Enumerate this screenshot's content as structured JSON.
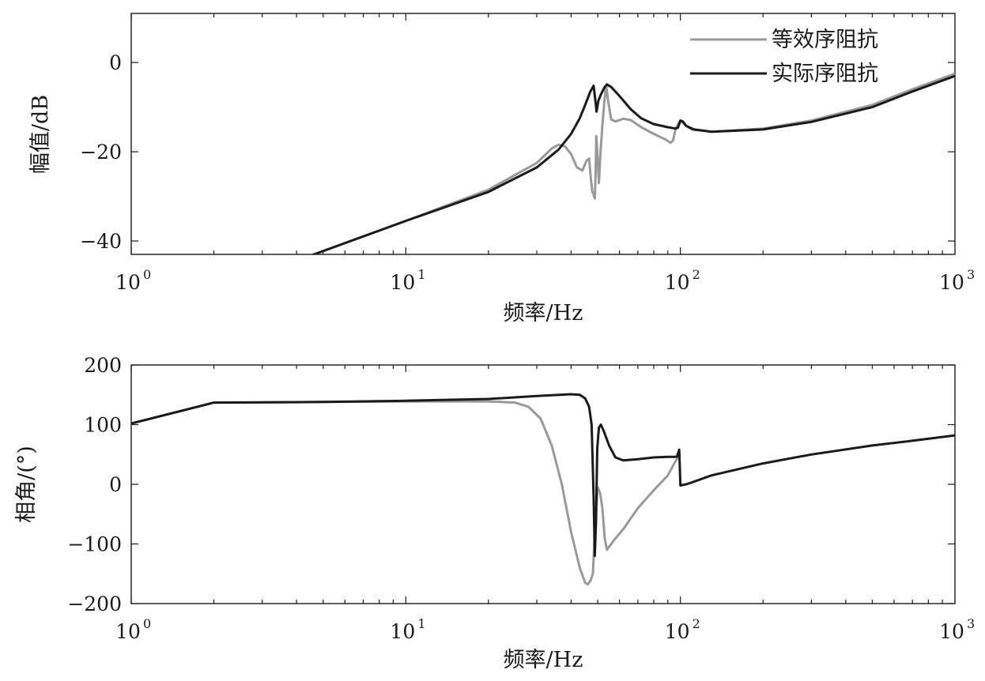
{
  "chart_data": [
    {
      "type": "line",
      "xscale": "log",
      "xlim": [
        1,
        1000
      ],
      "ylim": [
        -43,
        11
      ],
      "xlabel": "频率/Hz",
      "ylabel": "幅值/dB",
      "grid": false,
      "legend_position": "top-right",
      "xtick_labels": [
        {
          "base": "10",
          "exp": "0",
          "value": 1
        },
        {
          "base": "10",
          "exp": "1",
          "value": 10
        },
        {
          "base": "10",
          "exp": "2",
          "value": 100
        },
        {
          "base": "10",
          "exp": "3",
          "value": 1000
        }
      ],
      "yticks": [
        {
          "value": 0,
          "label": "0"
        },
        {
          "value": -20,
          "label": "−20"
        },
        {
          "value": -40,
          "label": "−40"
        }
      ],
      "series": [
        {
          "name": "等效序阻抗",
          "color": "#999999",
          "points": [
            [
              4.4,
              -43.5
            ],
            [
              10,
              -35.5
            ],
            [
              20,
              -28.5
            ],
            [
              30,
              -22.5
            ],
            [
              34,
              -19.3
            ],
            [
              36,
              -18.4
            ],
            [
              38,
              -18.8
            ],
            [
              40,
              -20.5
            ],
            [
              42,
              -23.5
            ],
            [
              44,
              -24.2
            ],
            [
              45.5,
              -22
            ],
            [
              46.5,
              -21.5
            ],
            [
              47.2,
              -26
            ],
            [
              47.8,
              -29
            ],
            [
              48.3,
              -29.5
            ],
            [
              48.8,
              -30.5
            ],
            [
              49.1,
              -25
            ],
            [
              49.4,
              -16.5
            ],
            [
              49.8,
              -20
            ],
            [
              50.5,
              -27
            ],
            [
              51.2,
              -20
            ],
            [
              52,
              -14
            ],
            [
              53,
              -8
            ],
            [
              53.7,
              -5.2
            ],
            [
              54.5,
              -8.5
            ],
            [
              56,
              -12.8
            ],
            [
              58,
              -13.2
            ],
            [
              62,
              -12.6
            ],
            [
              66,
              -12.9
            ],
            [
              72,
              -14.5
            ],
            [
              80,
              -16
            ],
            [
              88,
              -17.2
            ],
            [
              92,
              -18
            ],
            [
              94,
              -17.5
            ],
            [
              96,
              -15
            ],
            [
              98,
              -13.8
            ],
            [
              100,
              -13
            ],
            [
              104,
              -14
            ],
            [
              110,
              -15
            ],
            [
              130,
              -15.5
            ],
            [
              200,
              -14.8
            ],
            [
              300,
              -13
            ],
            [
              500,
              -9.5
            ],
            [
              700,
              -6
            ],
            [
              1000,
              -2.5
            ]
          ]
        },
        {
          "name": "实际序阻抗",
          "color": "#1a1a1a",
          "points": [
            [
              4.4,
              -43.5
            ],
            [
              10,
              -35.5
            ],
            [
              20,
              -29
            ],
            [
              30,
              -23.5
            ],
            [
              36,
              -19.5
            ],
            [
              40,
              -16
            ],
            [
              43,
              -12.5
            ],
            [
              45,
              -9.5
            ],
            [
              47,
              -6.5
            ],
            [
              48.3,
              -5.2
            ],
            [
              49,
              -8.5
            ],
            [
              49.5,
              -11
            ],
            [
              50.3,
              -8.5
            ],
            [
              51.5,
              -7
            ],
            [
              53,
              -5.5
            ],
            [
              54,
              -4.9
            ],
            [
              56,
              -5.5
            ],
            [
              60,
              -7.5
            ],
            [
              66,
              -10.5
            ],
            [
              72,
              -12.5
            ],
            [
              80,
              -13.8
            ],
            [
              90,
              -14.5
            ],
            [
              96,
              -14.8
            ],
            [
              98,
              -14.6
            ],
            [
              100,
              -13
            ],
            [
              102,
              -13.2
            ],
            [
              105,
              -14.2
            ],
            [
              112,
              -15
            ],
            [
              130,
              -15.5
            ],
            [
              200,
              -15
            ],
            [
              300,
              -13.3
            ],
            [
              500,
              -10
            ],
            [
              700,
              -6.5
            ],
            [
              1000,
              -3
            ]
          ]
        }
      ]
    },
    {
      "type": "line",
      "xscale": "log",
      "xlim": [
        1,
        1000
      ],
      "ylim": [
        -200,
        200
      ],
      "xlabel": "频率/Hz",
      "ylabel": "相角/(°)",
      "grid": false,
      "xtick_labels": [
        {
          "base": "10",
          "exp": "0",
          "value": 1
        },
        {
          "base": "10",
          "exp": "1",
          "value": 10
        },
        {
          "base": "10",
          "exp": "2",
          "value": 100
        },
        {
          "base": "10",
          "exp": "3",
          "value": 1000
        }
      ],
      "yticks": [
        {
          "value": 200,
          "label": "200"
        },
        {
          "value": 100,
          "label": "100"
        },
        {
          "value": 0,
          "label": "0"
        },
        {
          "value": -100,
          "label": "−100"
        },
        {
          "value": -200,
          "label": "−200"
        }
      ],
      "series": [
        {
          "name": "等效序阻抗",
          "color": "#999999",
          "points": [
            [
              1,
              102
            ],
            [
              2,
              137
            ],
            [
              5,
              138
            ],
            [
              10,
              139
            ],
            [
              20,
              139
            ],
            [
              25,
              137
            ],
            [
              28,
              130
            ],
            [
              31,
              110
            ],
            [
              34,
              65
            ],
            [
              37,
              0
            ],
            [
              40,
              -80
            ],
            [
              43,
              -140
            ],
            [
              45,
              -165
            ],
            [
              46,
              -168
            ],
            [
              47,
              -162
            ],
            [
              48,
              -150
            ],
            [
              49,
              -60
            ],
            [
              50,
              -5
            ],
            [
              51,
              -15
            ],
            [
              52,
              -40
            ],
            [
              53,
              -90
            ],
            [
              54,
              -110
            ],
            [
              57,
              -95
            ],
            [
              62,
              -75
            ],
            [
              70,
              -40
            ],
            [
              80,
              -10
            ],
            [
              90,
              15
            ],
            [
              95,
              35
            ],
            [
              98,
              45
            ],
            [
              100,
              45
            ]
          ]
        },
        {
          "name": "实际序阻抗",
          "color": "#1a1a1a",
          "points": [
            [
              1,
              102
            ],
            [
              2,
              137
            ],
            [
              5,
              138
            ],
            [
              10,
              140
            ],
            [
              20,
              143
            ],
            [
              30,
              148
            ],
            [
              40,
              151
            ],
            [
              43,
              150
            ],
            [
              45,
              144
            ],
            [
              46.5,
              130
            ],
            [
              47.5,
              100
            ],
            [
              48.3,
              -20
            ],
            [
              48.8,
              -120
            ],
            [
              49.3,
              -60
            ],
            [
              49.8,
              60
            ],
            [
              50.5,
              95
            ],
            [
              51.3,
              100
            ],
            [
              52.5,
              90
            ],
            [
              55,
              65
            ],
            [
              58,
              45
            ],
            [
              62,
              40
            ],
            [
              70,
              42
            ],
            [
              80,
              45
            ],
            [
              90,
              46
            ],
            [
              97,
              46
            ],
            [
              99,
              58
            ],
            [
              100,
              -2
            ],
            [
              105,
              0
            ],
            [
              110,
              3
            ],
            [
              130,
              15
            ],
            [
              200,
              35
            ],
            [
              300,
              50
            ],
            [
              500,
              65
            ],
            [
              700,
              73
            ],
            [
              1000,
              82
            ]
          ]
        }
      ]
    }
  ]
}
